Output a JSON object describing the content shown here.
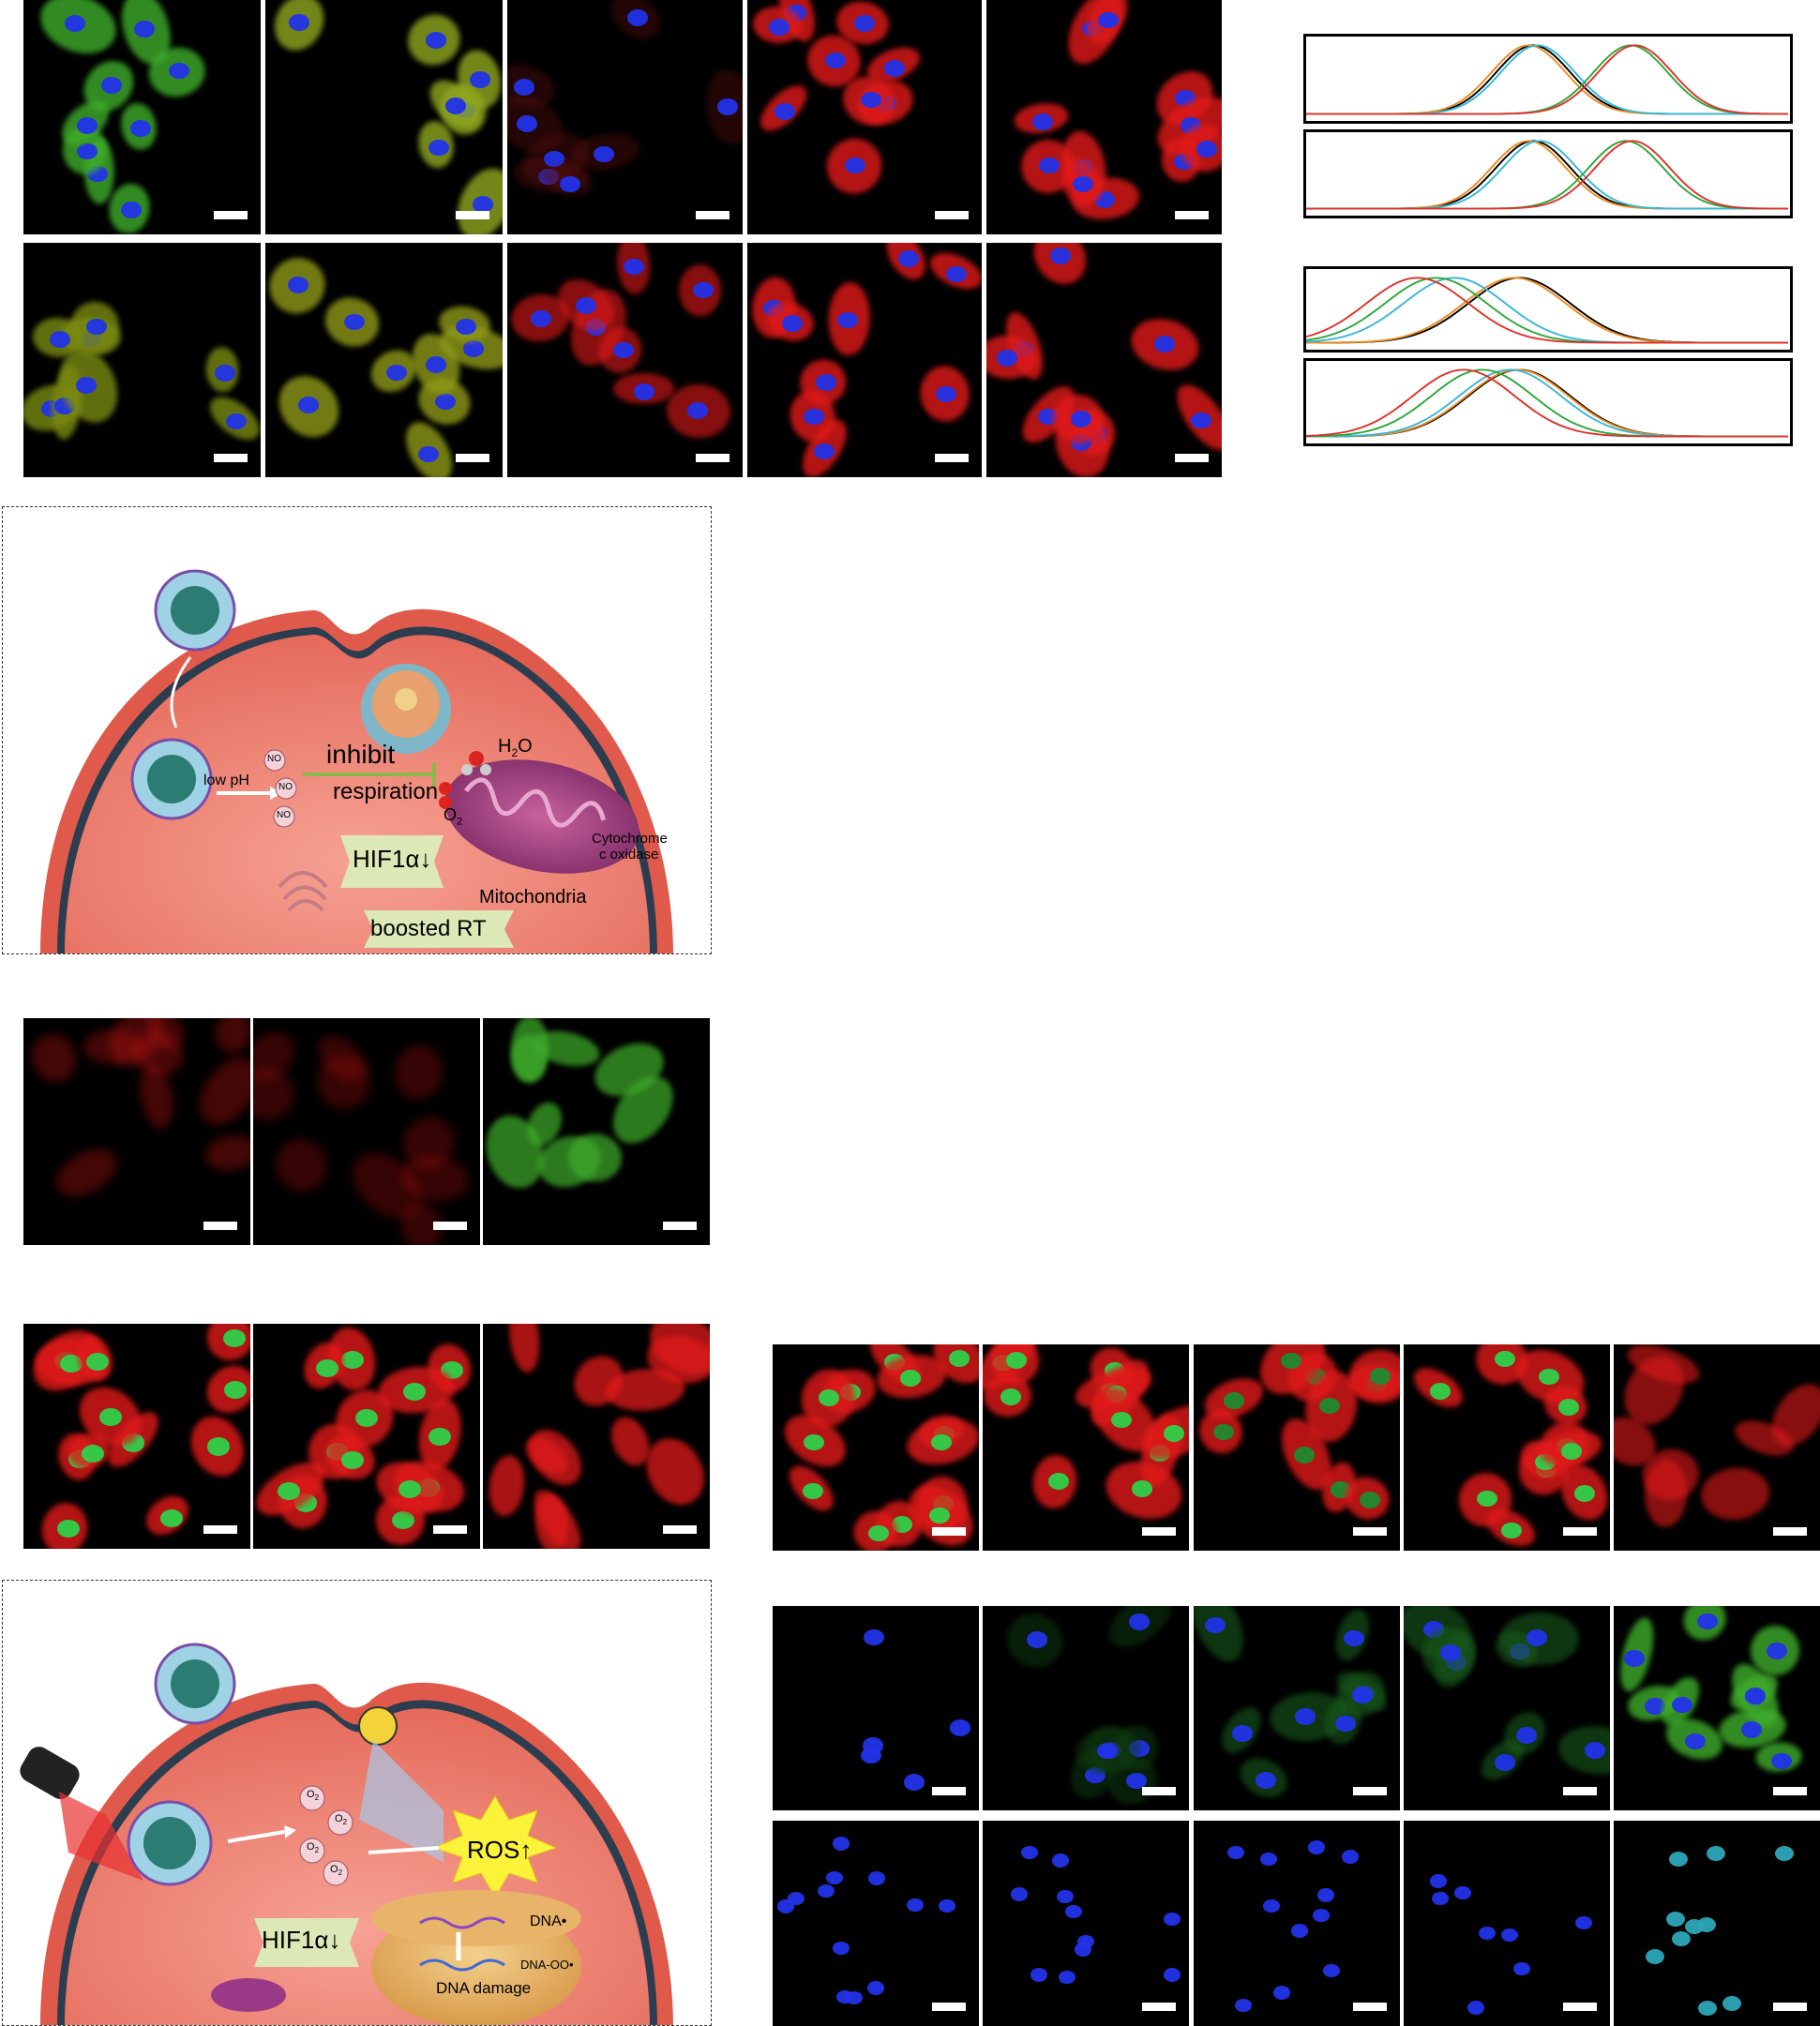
{
  "colors": {
    "dapi": "#2233e8",
    "green": "#3fae2b",
    "yellow_green": "#8fa820",
    "red": "#e11a1a",
    "cell_body": "#f08072",
    "membrane": "#e0604f"
  },
  "histograms": {
    "series_colors": [
      "#000000",
      "#f08a1c",
      "#35b8d8",
      "#2aa83a",
      "#e0302a"
    ]
  },
  "scheme1": {
    "low_ph": "low pH",
    "no_1": "NO",
    "no_2": "NO",
    "no_3": "NO",
    "inhibit": "inhibit",
    "respiration": "respiration",
    "h2o": "H",
    "h2o_sub": "2",
    "h2o_end": "O",
    "o2": "O",
    "o2_sub": "2",
    "cytochrome_1": "Cytochrome",
    "cytochrome_2": "c oxidase",
    "hif": "HIF1α↓",
    "boosted": "boosted RT",
    "mito": "Mitochondria"
  },
  "scheme2": {
    "o2_1": "O",
    "o2_2": "O",
    "o2_3": "O",
    "o2_4": "O",
    "sub": "2",
    "ros": "ROS↑",
    "dna": "DNA•",
    "dna_oo": "DNA-OO•",
    "damage": "DNA damage",
    "hif": "HIF1α↓"
  }
}
